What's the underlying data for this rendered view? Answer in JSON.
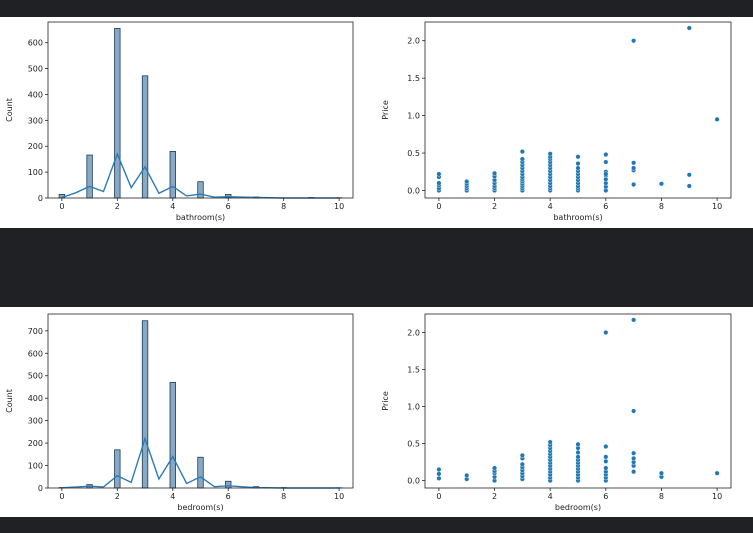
{
  "chart_data": [
    {
      "type": "histogram",
      "xlabel": "bathroom(s)",
      "ylabel": "Count",
      "xlim": [
        -0.5,
        10.5
      ],
      "ylim": [
        0,
        680
      ],
      "xticks": [
        "0",
        "2",
        "4",
        "6",
        "8",
        "10"
      ],
      "yticks": [
        "0",
        "100",
        "200",
        "300",
        "400",
        "500",
        "600"
      ],
      "bins": [
        {
          "x": 0,
          "count": 14
        },
        {
          "x": 1,
          "count": 166
        },
        {
          "x": 2,
          "count": 655
        },
        {
          "x": 3,
          "count": 472
        },
        {
          "x": 4,
          "count": 180
        },
        {
          "x": 5,
          "count": 63
        },
        {
          "x": 6,
          "count": 14
        },
        {
          "x": 7,
          "count": 4
        },
        {
          "x": 9,
          "count": 2
        },
        {
          "x": 10,
          "count": 1
        }
      ],
      "kde": [
        [
          0,
          2
        ],
        [
          0.5,
          20
        ],
        [
          1,
          45
        ],
        [
          1.5,
          25
        ],
        [
          2,
          170
        ],
        [
          2.5,
          40
        ],
        [
          3,
          120
        ],
        [
          3.5,
          18
        ],
        [
          4,
          45
        ],
        [
          4.5,
          8
        ],
        [
          5,
          15
        ],
        [
          5.5,
          3
        ],
        [
          6,
          5
        ],
        [
          7,
          2
        ],
        [
          8,
          0
        ],
        [
          10,
          0
        ]
      ]
    },
    {
      "type": "scatter",
      "xlabel": "bathroom(s)",
      "ylabel": "Price",
      "xlim": [
        -0.5,
        10.5
      ],
      "ylim": [
        -0.1,
        2.25
      ],
      "xticks": [
        "0",
        "2",
        "4",
        "6",
        "8",
        "10"
      ],
      "yticks": [
        "0.0",
        "0.5",
        "1.0",
        "1.5",
        "2.0"
      ],
      "x": [
        0,
        0,
        0,
        0,
        0,
        0,
        1,
        1,
        1,
        1,
        1,
        2,
        2,
        2,
        2,
        2,
        2,
        2,
        3,
        3,
        3,
        3,
        3,
        3,
        3,
        3,
        3,
        3,
        3,
        3,
        3,
        3,
        4,
        4,
        4,
        4,
        4,
        4,
        4,
        4,
        4,
        4,
        4,
        4,
        4,
        4,
        5,
        5,
        5,
        5,
        5,
        5,
        5,
        5,
        5,
        5,
        5,
        6,
        6,
        6,
        6,
        6,
        6,
        6,
        6,
        6,
        7,
        7,
        7,
        7,
        7,
        8,
        9,
        9,
        9,
        10
      ],
      "y": [
        0.0,
        0.03,
        0.07,
        0.1,
        0.18,
        0.22,
        0.0,
        0.03,
        0.06,
        0.09,
        0.12,
        0.0,
        0.03,
        0.06,
        0.1,
        0.14,
        0.19,
        0.23,
        0.0,
        0.03,
        0.06,
        0.09,
        0.12,
        0.15,
        0.18,
        0.22,
        0.26,
        0.3,
        0.34,
        0.38,
        0.42,
        0.52,
        0.0,
        0.03,
        0.06,
        0.1,
        0.14,
        0.18,
        0.22,
        0.26,
        0.3,
        0.34,
        0.38,
        0.42,
        0.45,
        0.49,
        0.0,
        0.03,
        0.06,
        0.1,
        0.14,
        0.18,
        0.22,
        0.26,
        0.3,
        0.36,
        0.45,
        0.0,
        0.05,
        0.1,
        0.15,
        0.2,
        0.25,
        0.38,
        0.48,
        0.22,
        0.08,
        0.27,
        0.3,
        0.37,
        2.0,
        0.09,
        0.06,
        0.21,
        2.17,
        0.95
      ]
    },
    {
      "type": "histogram",
      "xlabel": "bedroom(s)",
      "ylabel": "Count",
      "xlim": [
        -0.5,
        10.5
      ],
      "ylim": [
        0,
        775
      ],
      "xticks": [
        "0",
        "2",
        "4",
        "6",
        "8",
        "10"
      ],
      "yticks": [
        "0",
        "100",
        "200",
        "300",
        "400",
        "500",
        "600",
        "700"
      ],
      "bins": [
        {
          "x": 0,
          "count": 2
        },
        {
          "x": 1,
          "count": 15
        },
        {
          "x": 2,
          "count": 170
        },
        {
          "x": 3,
          "count": 745
        },
        {
          "x": 4,
          "count": 470
        },
        {
          "x": 5,
          "count": 137
        },
        {
          "x": 6,
          "count": 30
        },
        {
          "x": 7,
          "count": 6
        },
        {
          "x": 8,
          "count": 2
        },
        {
          "x": 10,
          "count": 1
        }
      ],
      "kde": [
        [
          0,
          1
        ],
        [
          1,
          8
        ],
        [
          1.5,
          5
        ],
        [
          2,
          55
        ],
        [
          2.5,
          25
        ],
        [
          3,
          220
        ],
        [
          3.5,
          40
        ],
        [
          4,
          140
        ],
        [
          4.5,
          20
        ],
        [
          5,
          50
        ],
        [
          5.5,
          6
        ],
        [
          6,
          10
        ],
        [
          7,
          2
        ],
        [
          8,
          0
        ],
        [
          10,
          0
        ]
      ]
    },
    {
      "type": "scatter",
      "xlabel": "bedroom(s)",
      "ylabel": "Price",
      "xlim": [
        -0.5,
        10.5
      ],
      "ylim": [
        -0.1,
        2.25
      ],
      "xticks": [
        "0",
        "2",
        "4",
        "6",
        "8",
        "10"
      ],
      "yticks": [
        "0.0",
        "0.5",
        "1.0",
        "1.5",
        "2.0"
      ],
      "x": [
        0,
        0,
        0,
        1,
        1,
        2,
        2,
        2,
        2,
        2,
        3,
        3,
        3,
        3,
        3,
        3,
        3,
        3,
        4,
        4,
        4,
        4,
        4,
        4,
        4,
        4,
        4,
        4,
        4,
        4,
        4,
        4,
        5,
        5,
        5,
        5,
        5,
        5,
        5,
        5,
        5,
        5,
        5,
        5,
        6,
        6,
        6,
        6,
        6,
        6,
        6,
        6,
        6,
        7,
        7,
        7,
        7,
        7,
        7,
        7,
        8,
        8,
        10
      ],
      "y": [
        0.03,
        0.09,
        0.15,
        0.02,
        0.07,
        0.0,
        0.05,
        0.1,
        0.13,
        0.17,
        0.02,
        0.06,
        0.1,
        0.14,
        0.18,
        0.22,
        0.3,
        0.34,
        0.0,
        0.04,
        0.08,
        0.12,
        0.16,
        0.2,
        0.24,
        0.28,
        0.32,
        0.36,
        0.4,
        0.44,
        0.48,
        0.52,
        0.0,
        0.04,
        0.08,
        0.12,
        0.16,
        0.2,
        0.24,
        0.28,
        0.32,
        0.38,
        0.44,
        0.49,
        0.0,
        0.04,
        0.08,
        0.12,
        0.17,
        0.26,
        0.32,
        0.46,
        2.0,
        0.12,
        0.2,
        0.25,
        0.3,
        0.37,
        0.94,
        2.17,
        0.05,
        0.1,
        0.1
      ]
    }
  ]
}
